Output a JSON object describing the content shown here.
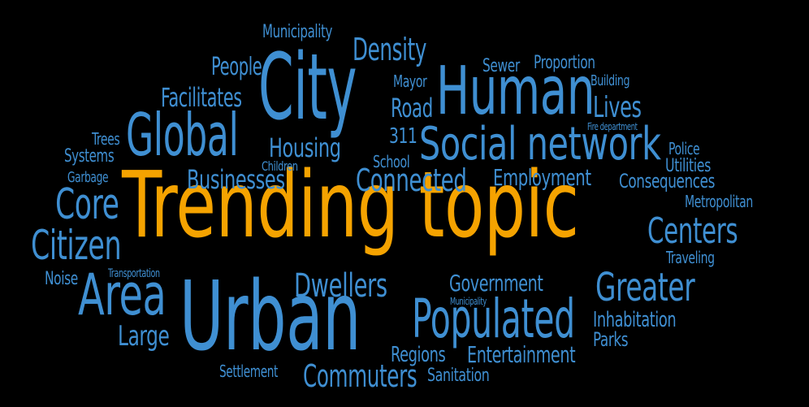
{
  "colors": {
    "background": "#000000",
    "blue": "#3f8fd2",
    "orange": "#f5a300"
  },
  "words": [
    {
      "id": "trending-topic",
      "text": "Trending topic",
      "color": "orange"
    },
    {
      "id": "city",
      "text": "City",
      "color": "blue"
    },
    {
      "id": "urban",
      "text": "Urban",
      "color": "blue"
    },
    {
      "id": "human",
      "text": "Human",
      "color": "blue"
    },
    {
      "id": "global",
      "text": "Global",
      "color": "blue"
    },
    {
      "id": "social-network",
      "text": "Social network",
      "color": "blue"
    },
    {
      "id": "populated",
      "text": "Populated",
      "color": "blue"
    },
    {
      "id": "area",
      "text": "Area",
      "color": "blue"
    },
    {
      "id": "greater",
      "text": "Greater",
      "color": "blue"
    },
    {
      "id": "citizen",
      "text": "Citizen",
      "color": "blue"
    },
    {
      "id": "core",
      "text": "Core",
      "color": "blue"
    },
    {
      "id": "centers",
      "text": "Centers",
      "color": "blue"
    },
    {
      "id": "dwellers",
      "text": "Dwellers",
      "color": "blue"
    },
    {
      "id": "connected",
      "text": "Connected",
      "color": "blue"
    },
    {
      "id": "businesses",
      "text": "Businesses",
      "color": "blue"
    },
    {
      "id": "commuters",
      "text": "Commuters",
      "color": "blue"
    },
    {
      "id": "large",
      "text": "Large",
      "color": "blue"
    },
    {
      "id": "density",
      "text": "Density",
      "color": "blue"
    },
    {
      "id": "lives",
      "text": "Lives",
      "color": "blue"
    },
    {
      "id": "facilitates",
      "text": "Facilitates",
      "color": "blue"
    },
    {
      "id": "housing",
      "text": "Housing",
      "color": "blue"
    },
    {
      "id": "people",
      "text": "People",
      "color": "blue"
    },
    {
      "id": "road",
      "text": "Road",
      "color": "blue"
    },
    {
      "id": "employment",
      "text": "Employment",
      "color": "blue"
    },
    {
      "id": "government",
      "text": "Government",
      "color": "blue"
    },
    {
      "id": "entertainment",
      "text": "Entertainment",
      "color": "blue"
    },
    {
      "id": "regions",
      "text": "Regions",
      "color": "blue"
    },
    {
      "id": "inhabitation",
      "text": "Inhabitation",
      "color": "blue"
    },
    {
      "id": "consequences",
      "text": "Consequences",
      "color": "blue"
    },
    {
      "id": "utilities",
      "text": "Utilities",
      "color": "blue"
    },
    {
      "id": "municipality-top",
      "text": "Municipality",
      "color": "blue"
    },
    {
      "id": "sewer",
      "text": "Sewer",
      "color": "blue"
    },
    {
      "id": "proportion",
      "text": "Proportion",
      "color": "blue"
    },
    {
      "id": "mayor",
      "text": "Mayor",
      "color": "blue"
    },
    {
      "id": "building",
      "text": "Building",
      "color": "blue"
    },
    {
      "id": "fire-department",
      "text": "Fire department",
      "color": "blue"
    },
    {
      "id": "police",
      "text": "Police",
      "color": "blue"
    },
    {
      "id": "metropolitan",
      "text": "Metropolitan",
      "color": "blue"
    },
    {
      "id": "traveling",
      "text": "Traveling",
      "color": "blue"
    },
    {
      "id": "parks",
      "text": "Parks",
      "color": "blue"
    },
    {
      "id": "sanitation",
      "text": "Sanitation",
      "color": "blue"
    },
    {
      "id": "settlement",
      "text": "Settlement",
      "color": "blue"
    },
    {
      "id": "noise",
      "text": "Noise",
      "color": "blue"
    },
    {
      "id": "transportation",
      "text": "Transportation",
      "color": "blue"
    },
    {
      "id": "garbage",
      "text": "Garbage",
      "color": "blue"
    },
    {
      "id": "systems",
      "text": "Systems",
      "color": "blue"
    },
    {
      "id": "trees",
      "text": "Trees",
      "color": "blue"
    },
    {
      "id": "children",
      "text": "Children",
      "color": "blue"
    },
    {
      "id": "school",
      "text": "School",
      "color": "blue"
    },
    {
      "id": "three-one-one",
      "text": "311",
      "color": "blue"
    },
    {
      "id": "municipality-small",
      "text": "Municipality",
      "color": "blue"
    }
  ]
}
